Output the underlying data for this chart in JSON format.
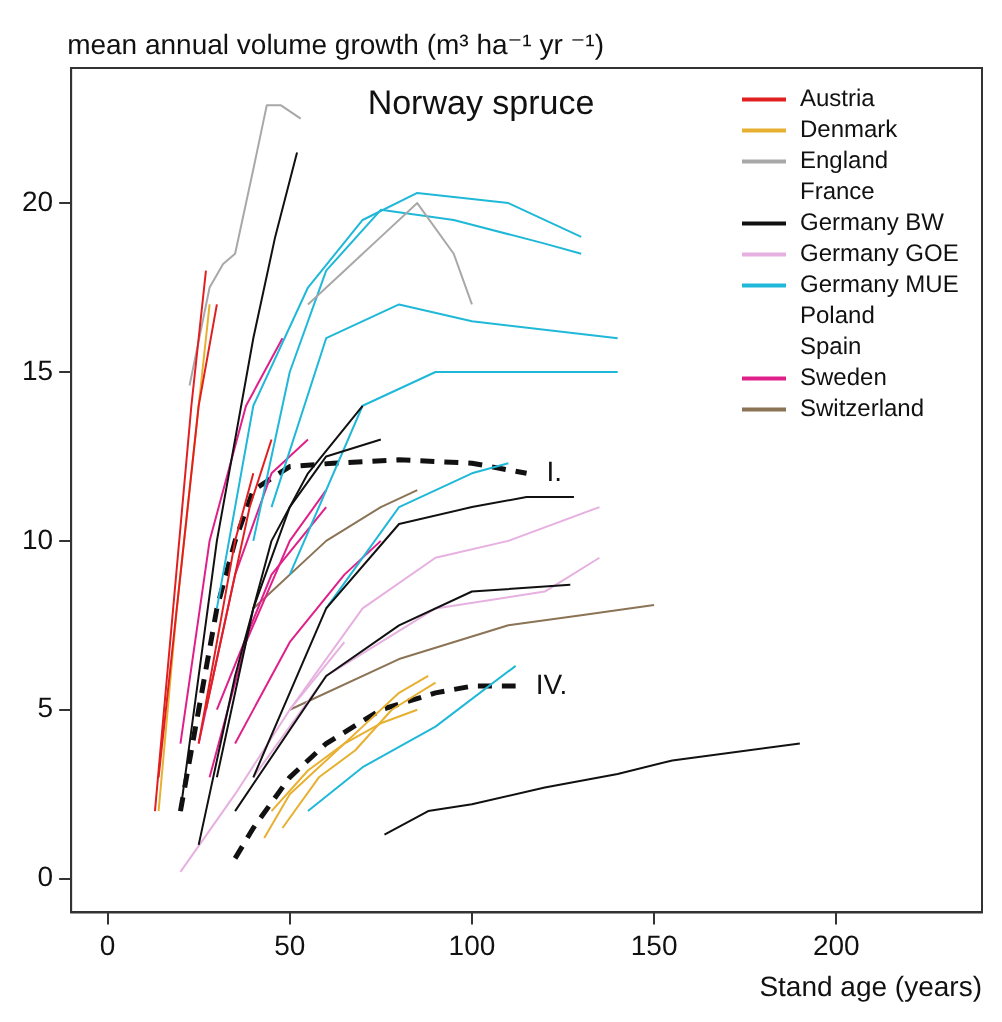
{
  "chart_data": {
    "type": "line",
    "title": "Norway spruce",
    "ylabel": "mean annual volume growth (m³ ha⁻¹ yr ⁻¹)",
    "xlabel": "Stand age (years)",
    "xlim": [
      -10,
      240
    ],
    "ylim": [
      -1,
      24
    ],
    "xticks": [
      0,
      50,
      100,
      150,
      200
    ],
    "yticks": [
      0,
      5,
      10,
      15,
      20
    ],
    "grid": false,
    "legend": "top right",
    "annotations": [
      {
        "text": "I.",
        "x": 115,
        "y": 12
      },
      {
        "text": "IV.",
        "x": 112,
        "y": 5.7
      }
    ],
    "series": [
      {
        "name": "Austria",
        "color": "#e02020",
        "x": [
          13,
          18,
          23,
          27
        ],
        "values": [
          2,
          8,
          14,
          18
        ]
      },
      {
        "color": "#e02020",
        "x": [
          14,
          20,
          25,
          30
        ],
        "values": [
          3,
          9,
          14,
          17
        ]
      },
      {
        "color": "#e02020",
        "x": [
          25,
          30,
          35,
          40
        ],
        "values": [
          4,
          7,
          10,
          12
        ]
      },
      {
        "color": "#e02020",
        "x": [
          27,
          33,
          39,
          45
        ],
        "values": [
          5,
          8,
          11,
          13
        ]
      },
      {
        "name": "Denmark",
        "color": "#e8b030",
        "x": [
          43,
          50,
          60,
          70,
          80,
          88
        ],
        "values": [
          1.2,
          2.5,
          3.5,
          4.5,
          5.5,
          6
        ]
      },
      {
        "color": "#e8b030",
        "x": [
          45,
          55,
          65,
          75,
          85
        ],
        "values": [
          2,
          3.2,
          4,
          4.6,
          5
        ]
      },
      {
        "color": "#e8b030",
        "x": [
          48,
          58,
          68,
          78,
          90
        ],
        "values": [
          1.5,
          3,
          3.8,
          5,
          5.8
        ]
      },
      {
        "color": "#e8b030",
        "x": [
          14,
          19,
          24,
          28
        ],
        "values": [
          2,
          8,
          13,
          17
        ]
      },
      {
        "name": "England",
        "color": "#a8a8a8",
        "x": [
          22.5,
          28,
          31.7,
          35,
          40,
          43.7,
          47.5,
          53
        ],
        "values": [
          14.6,
          17.5,
          18.2,
          18.5,
          21,
          22.9,
          22.9,
          22.5
        ]
      },
      {
        "color": "#a8a8a8",
        "x": [
          55,
          65,
          75,
          85,
          95,
          100
        ],
        "values": [
          17,
          18,
          19,
          20,
          18.5,
          17
        ]
      },
      {
        "name": "France"
      },
      {
        "name": "Germany BW",
        "color": "#111111",
        "x": [
          20,
          30,
          40,
          46,
          52
        ],
        "values": [
          2,
          10,
          16,
          19,
          21.5
        ]
      },
      {
        "color": "#111111",
        "x": [
          40,
          60,
          80,
          100,
          115,
          128
        ],
        "values": [
          3,
          8,
          10.5,
          11,
          11.3,
          11.3
        ]
      },
      {
        "color": "#111111",
        "x": [
          76,
          88,
          100,
          120,
          140,
          155,
          190
        ],
        "values": [
          1.3,
          2,
          2.2,
          2.7,
          3.1,
          3.5,
          4
        ]
      },
      {
        "color": "#111111",
        "x": [
          35,
          60,
          80,
          100,
          127
        ],
        "values": [
          2,
          6,
          7.5,
          8.5,
          8.7
        ]
      },
      {
        "color": "#111111",
        "x": [
          25,
          35,
          45,
          55,
          70
        ],
        "values": [
          1,
          6,
          10,
          12,
          14
        ]
      },
      {
        "color": "#111111",
        "x": [
          30,
          40,
          50,
          60,
          75
        ],
        "values": [
          3,
          8,
          11,
          12.5,
          13
        ]
      },
      {
        "name": "Germany GOE",
        "color": "#e6b0e0",
        "x": [
          50,
          70,
          90,
          110,
          135
        ],
        "values": [
          5,
          8,
          9.5,
          10,
          11
        ]
      },
      {
        "color": "#e6b0e0",
        "x": [
          40,
          60,
          90,
          120,
          135
        ],
        "values": [
          3,
          6,
          8,
          8.5,
          9.5
        ]
      },
      {
        "color": "#e6b0e0",
        "x": [
          20,
          35,
          50,
          65
        ],
        "values": [
          0.2,
          2.5,
          5,
          7
        ]
      },
      {
        "name": "Germany MUE",
        "color": "#20b8d8",
        "x": [
          40,
          50,
          60,
          75,
          95,
          120,
          130
        ],
        "values": [
          10,
          15,
          18,
          19.8,
          19.5,
          18.8,
          18.5
        ]
      },
      {
        "color": "#20b8d8",
        "x": [
          45,
          60,
          80,
          100,
          140
        ],
        "values": [
          11,
          16,
          17,
          16.5,
          16
        ]
      },
      {
        "color": "#20b8d8",
        "x": [
          50,
          70,
          90,
          110,
          140
        ],
        "values": [
          9,
          14,
          15,
          15,
          15
        ]
      },
      {
        "color": "#20b8d8",
        "x": [
          60,
          80,
          100,
          110
        ],
        "values": [
          8,
          11,
          12,
          12.3
        ]
      },
      {
        "color": "#20b8d8",
        "x": [
          55,
          70,
          90,
          112
        ],
        "values": [
          2,
          3.3,
          4.5,
          6.3
        ]
      },
      {
        "color": "#20b8d8",
        "x": [
          30,
          40,
          55,
          70,
          85,
          110,
          130
        ],
        "values": [
          8,
          14,
          17.5,
          19.5,
          20.3,
          20,
          19
        ]
      },
      {
        "name": "Poland"
      },
      {
        "name": "Spain"
      },
      {
        "name": "Sweden",
        "color": "#e0208a",
        "x": [
          20,
          28,
          38,
          48
        ],
        "values": [
          4,
          10,
          14,
          16
        ]
      },
      {
        "color": "#e0208a",
        "x": [
          25,
          35,
          45,
          55
        ],
        "values": [
          4,
          9,
          12,
          13
        ]
      },
      {
        "color": "#e0208a",
        "x": [
          28,
          38,
          50,
          60
        ],
        "values": [
          3,
          7,
          10,
          11.5
        ]
      },
      {
        "color": "#e0208a",
        "x": [
          30,
          45,
          60
        ],
        "values": [
          5,
          9,
          11
        ]
      },
      {
        "color": "#e0208a",
        "x": [
          35,
          50,
          65,
          75
        ],
        "values": [
          4,
          7,
          9,
          10
        ]
      },
      {
        "name": "Switzerland",
        "color": "#8b7355",
        "x": [
          50,
          80,
          110,
          130,
          150
        ],
        "values": [
          5,
          6.5,
          7.5,
          7.8,
          8.1
        ]
      },
      {
        "color": "#8b7355",
        "x": [
          40,
          60,
          75,
          85
        ],
        "values": [
          8,
          10,
          11,
          11.5
        ]
      },
      {
        "color": "#111111",
        "line_style": "dashed",
        "x": [
          20,
          25,
          30,
          35,
          40,
          50,
          62,
          80,
          100,
          115
        ],
        "values": [
          2,
          5,
          8,
          10,
          11.5,
          12.2,
          12.3,
          12.4,
          12.3,
          12
        ]
      },
      {
        "color": "#111111",
        "line_style": "dashed",
        "x": [
          35,
          40,
          50,
          60,
          75,
          90,
          100,
          112
        ],
        "values": [
          0.6,
          1.5,
          3,
          4,
          5,
          5.5,
          5.7,
          5.7
        ]
      }
    ]
  }
}
